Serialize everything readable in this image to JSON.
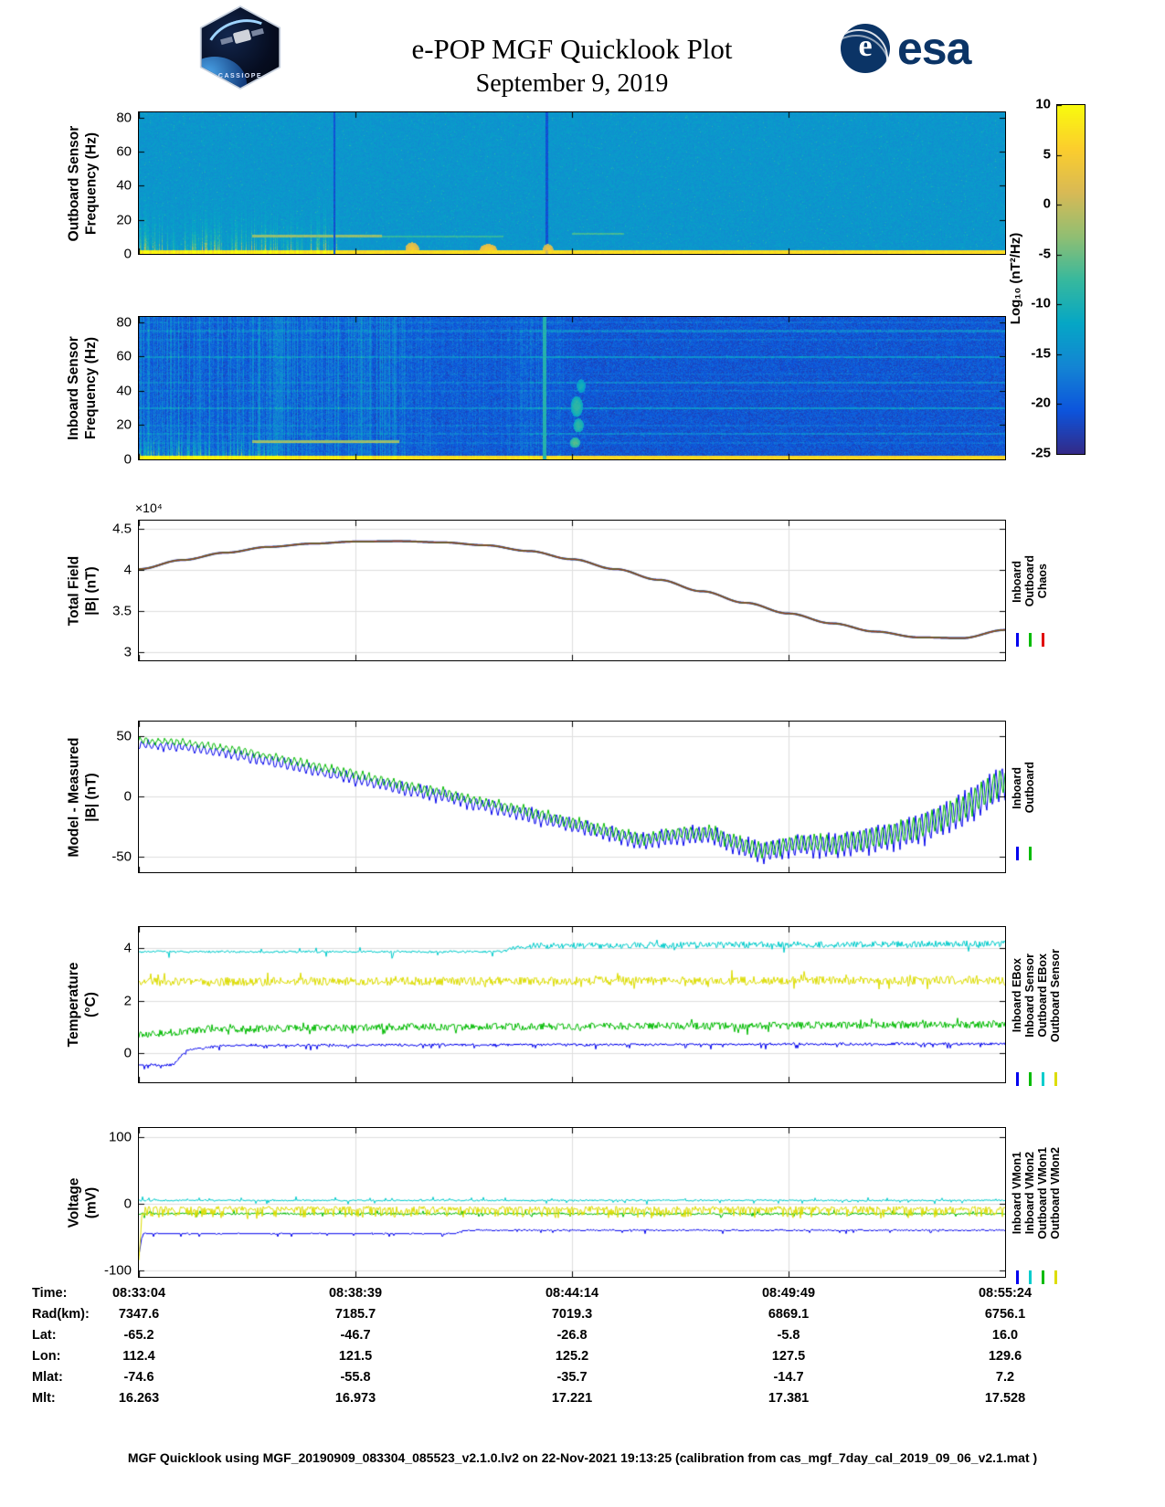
{
  "header": {
    "title_line1": "e-POP MGF Quicklook Plot",
    "title_line2": "September 9, 2019",
    "cassiope_logo_text": "CASSIOPE",
    "esa_logo_text": "esa",
    "esa_emblem_letter": "e"
  },
  "colorbar": {
    "label": "Log₁₀ (nT²/Hz)",
    "colormap": "parula",
    "range": [
      -25,
      10
    ],
    "ticks": [
      10,
      5,
      0,
      -5,
      -10,
      -15,
      -20,
      -25
    ]
  },
  "footer": {
    "text": "MGF Quicklook using MGF_20190909_083304_085523_v2.1.0.lv2 on 22-Nov-2021 19:13:25 (calibration from cas_mgf_7day_cal_2019_09_06_v2.1.mat )"
  },
  "ephemeris": {
    "rows": [
      {
        "label": "Time:",
        "values": [
          "08:33:04",
          "08:38:39",
          "08:44:14",
          "08:49:49",
          "08:55:24"
        ]
      },
      {
        "label": "Rad(km):",
        "values": [
          "7347.6",
          "7185.7",
          "7019.3",
          "6869.1",
          "6756.1"
        ]
      },
      {
        "label": "Lat:",
        "values": [
          "-65.2",
          "-46.7",
          "-26.8",
          "-5.8",
          "16.0"
        ]
      },
      {
        "label": "Lon:",
        "values": [
          "112.4",
          "121.5",
          "125.2",
          "127.5",
          "129.6"
        ]
      },
      {
        "label": "Mlat:",
        "values": [
          "-74.6",
          "-55.8",
          "-35.7",
          "-14.7",
          "7.2"
        ]
      },
      {
        "label": "Mlt:",
        "values": [
          "16.263",
          "16.973",
          "17.221",
          "17.381",
          "17.528"
        ]
      }
    ]
  },
  "chart_data": [
    {
      "id": "outboard-spectrogram",
      "type": "heatmap",
      "ylabel_lines": [
        "Outboard Sensor",
        "Frequency (Hz)"
      ],
      "ylim": [
        0,
        83
      ],
      "yticks": [
        0,
        20,
        40,
        60,
        80
      ],
      "value_range": [
        -25,
        10
      ],
      "value_units": "Log10 (nT²/Hz)",
      "background_level": -14,
      "background_noise": 1.3,
      "features": [
        {
          "type": "bottom_band",
          "f_max": 2.6,
          "level": 7
        },
        {
          "type": "burst_region",
          "t_max": 0.23,
          "f_scale": 9,
          "max_level": 24
        },
        {
          "type": "hline",
          "f": 10.5,
          "t0": 0.13,
          "t1": 0.28,
          "df": 0.8,
          "level": -3
        },
        {
          "type": "hline",
          "f": 10.5,
          "t0": 0.28,
          "t1": 0.42,
          "df": 0.5,
          "level": -8
        },
        {
          "type": "hline",
          "f": 12,
          "t0": 0.5,
          "t1": 0.56,
          "df": 0.6,
          "level": -7
        },
        {
          "type": "vline",
          "t": 0.2255,
          "w": 0.0012,
          "level": -21
        },
        {
          "type": "vline",
          "t": 0.4705,
          "w": 0.0012,
          "level": -21
        },
        {
          "type": "blob",
          "t": 0.315,
          "f": 3,
          "dt": 0.008,
          "df": 4,
          "level": 4
        },
        {
          "type": "blob",
          "t": 0.403,
          "f": 2.5,
          "dt": 0.01,
          "df": 3.5,
          "level": 5
        },
        {
          "type": "blob",
          "t": 0.472,
          "f": 3,
          "dt": 0.006,
          "df": 3,
          "level": 3
        }
      ]
    },
    {
      "id": "inboard-spectrogram",
      "type": "heatmap",
      "ylabel_lines": [
        "Inboard Sensor",
        "Frequency (Hz)"
      ],
      "ylim": [
        0,
        83
      ],
      "yticks": [
        0,
        20,
        40,
        60,
        80
      ],
      "value_range": [
        -25,
        10
      ],
      "value_units": "Log10 (nT²/Hz)",
      "background_level": -20.5,
      "background_noise": 2.2,
      "features": [
        {
          "type": "bottom_band",
          "f_max": 2.6,
          "level": 6.5
        },
        {
          "type": "stripe_region",
          "t_max": 0.31,
          "level_add": 7
        },
        {
          "type": "stripe_region",
          "t_min": 0.31,
          "t_max": 0.5,
          "level_add": 3
        },
        {
          "type": "burst_region",
          "t_max": 0.16,
          "f_scale": 7,
          "max_level": 28
        },
        {
          "type": "hline",
          "f": 10.5,
          "t0": 0.13,
          "t1": 0.3,
          "df": 0.8,
          "level": -3
        },
        {
          "type": "harmonics",
          "spacing": 10,
          "width": 0.5,
          "level_add": 2.5
        },
        {
          "type": "harmonics",
          "spacing": 15,
          "width": 0.6,
          "level_add": 3.5,
          "right_boost": true
        },
        {
          "type": "vline",
          "t": 0.468,
          "w": 0.002,
          "level": -9
        },
        {
          "type": "blob",
          "t": 0.505,
          "f": 31,
          "dt": 0.007,
          "df": 6,
          "level": -8
        },
        {
          "type": "blob",
          "t": 0.507,
          "f": 20,
          "dt": 0.006,
          "df": 4,
          "level": -8
        },
        {
          "type": "blob",
          "t": 0.51,
          "f": 43,
          "dt": 0.005,
          "df": 4,
          "level": -10
        },
        {
          "type": "blob",
          "t": 0.503,
          "f": 10,
          "dt": 0.006,
          "df": 3,
          "level": -6
        }
      ]
    },
    {
      "id": "total-field",
      "type": "line",
      "ylabel_lines": [
        "Total Field",
        "|B| (nT)"
      ],
      "scale_label": "×10⁴",
      "ylim": [
        2.9,
        4.6
      ],
      "yticks": [
        3,
        3.5,
        4,
        4.5
      ],
      "grid": true,
      "y_units": "1e4 nT",
      "x": [
        0,
        0.05,
        0.1,
        0.15,
        0.2,
        0.25,
        0.3,
        0.35,
        0.4,
        0.45,
        0.5,
        0.55,
        0.6,
        0.65,
        0.7,
        0.75,
        0.8,
        0.85,
        0.9,
        0.95,
        1
      ],
      "legend": [
        {
          "label": "Inboard",
          "color": "#0000EE"
        },
        {
          "label": "Outboard",
          "color": "#00BB00"
        },
        {
          "label": "Chaos",
          "color": "#E00000"
        }
      ],
      "series": [
        {
          "name": "Inboard",
          "color": "#2222DD",
          "style": "smooth",
          "lw": 2.2,
          "y": [
            4.01,
            4.12,
            4.21,
            4.28,
            4.32,
            4.345,
            4.35,
            4.335,
            4.3,
            4.23,
            4.13,
            4.01,
            3.88,
            3.74,
            3.6,
            3.47,
            3.35,
            3.25,
            3.18,
            3.17,
            3.27
          ]
        },
        {
          "name": "Outboard",
          "color": "#22AA22",
          "style": "smooth",
          "lw": 1.7,
          "alpha": 0.9,
          "y": [
            4.01,
            4.12,
            4.21,
            4.28,
            4.32,
            4.345,
            4.35,
            4.335,
            4.3,
            4.23,
            4.13,
            4.01,
            3.88,
            3.74,
            3.6,
            3.47,
            3.35,
            3.25,
            3.18,
            3.17,
            3.27
          ]
        },
        {
          "name": "Chaos",
          "color": "#A03818",
          "style": "smooth",
          "lw": 1.3,
          "alpha": 0.95,
          "y": [
            4.01,
            4.12,
            4.21,
            4.28,
            4.32,
            4.345,
            4.35,
            4.335,
            4.3,
            4.23,
            4.13,
            4.01,
            3.88,
            3.74,
            3.6,
            3.47,
            3.35,
            3.25,
            3.18,
            3.17,
            3.27
          ]
        }
      ]
    },
    {
      "id": "model-measured",
      "type": "line",
      "ylabel_lines": [
        "Model - Measured",
        "|B| (nT)"
      ],
      "ylim": [
        -63,
        62
      ],
      "yticks": [
        -50,
        0,
        50
      ],
      "grid": true,
      "x": [
        0,
        0.05,
        0.1,
        0.15,
        0.2,
        0.25,
        0.3,
        0.35,
        0.4,
        0.45,
        0.5,
        0.55,
        0.58,
        0.62,
        0.66,
        0.68,
        0.72,
        0.76,
        0.8,
        0.85,
        0.9,
        0.95,
        1
      ],
      "legend": [
        {
          "label": "Inboard",
          "color": "#0000EE"
        },
        {
          "label": "Outboard",
          "color": "#00BB00"
        }
      ],
      "series": [
        {
          "name": "Inboard",
          "color": "#0000EE",
          "style": "osc",
          "lw": 1,
          "y": [
            43,
            41,
            36,
            29,
            22,
            14,
            7,
            0,
            -8,
            -16,
            -24,
            -32,
            -38,
            -33,
            -32,
            -38,
            -47,
            -40,
            -42,
            -36,
            -28,
            -12,
            12
          ],
          "amp_x": [
            0,
            0.2,
            0.4,
            0.6,
            0.7,
            0.8,
            0.9,
            1
          ],
          "amp": [
            3.5,
            4.5,
            6,
            7,
            8.5,
            10.5,
            14,
            17
          ],
          "freq": 140,
          "jitter": 1.6
        },
        {
          "name": "Outboard",
          "color": "#00BB00",
          "style": "osc",
          "lw": 1,
          "y": [
            46,
            45,
            40,
            33,
            26,
            18,
            10,
            3,
            -5,
            -13,
            -22,
            -30,
            -36,
            -31,
            -30,
            -36,
            -45,
            -38,
            -40,
            -34,
            -26,
            -10,
            14
          ],
          "amp_x": [
            0,
            0.2,
            0.4,
            0.6,
            0.7,
            0.8,
            0.9,
            1
          ],
          "amp": [
            2.5,
            3.5,
            4.5,
            5.5,
            6.5,
            8,
            11,
            13
          ],
          "freq": 140,
          "jitter": 1.3,
          "phase": 0.33
        }
      ]
    },
    {
      "id": "temperature",
      "type": "line",
      "ylabel_lines": [
        "Temperature",
        "(°C)"
      ],
      "ylim": [
        -1.1,
        4.8
      ],
      "yticks": [
        0,
        2,
        4
      ],
      "grid": true,
      "legend": [
        {
          "label": "Inboard EBox",
          "color": "#0000EE"
        },
        {
          "label": "Inboard Sensor",
          "color": "#00BB00"
        },
        {
          "label": "Outboard EBox",
          "color": "#00CCCC"
        },
        {
          "label": "Outboard Sensor",
          "color": "#DDDD00"
        }
      ],
      "series": [
        {
          "name": "Inboard EBox",
          "color": "#0000EE",
          "style": "step",
          "lw": 1,
          "x": [
            0,
            0.04,
            0.055,
            0.1,
            0.45,
            1
          ],
          "y": [
            -0.45,
            -0.45,
            0.15,
            0.3,
            0.33,
            0.36
          ],
          "noise_amp": 0.04,
          "quant": 0.04,
          "dip_p": 0.05,
          "dip_mag": 0.17
        },
        {
          "name": "Inboard Sensor",
          "color": "#00BB00",
          "style": "noisy",
          "lw": 1,
          "x": [
            0,
            0.08,
            0.3,
            0.7,
            1
          ],
          "y": [
            0.68,
            0.92,
            1,
            1.05,
            1.1
          ],
          "noise_amp": 0.14,
          "spikes": {
            "p": 0.05,
            "mag": 0.22
          }
        },
        {
          "name": "Outboard Sensor",
          "color": "#DDDD00",
          "style": "noisy",
          "lw": 1,
          "x": [
            0,
            1
          ],
          "y": [
            2.72,
            2.78
          ],
          "noise_amp": 0.16,
          "spikes": {
            "p": 0.06,
            "mag": 0.28
          }
        },
        {
          "name": "Outboard EBox",
          "color": "#00CCCC",
          "style": "noisy",
          "lw": 1,
          "x": [
            0,
            0.42,
            0.44,
            1
          ],
          "y": [
            3.86,
            3.86,
            4.08,
            4.17
          ],
          "noise": {
            "x": [
              0,
              0.42,
              0.44,
              1
            ],
            "a": [
              0.04,
              0.04,
              0.12,
              0.12
            ]
          },
          "spikes": {
            "p": 0.03,
            "mag": 0.22
          }
        }
      ]
    },
    {
      "id": "voltage",
      "type": "line",
      "ylabel_lines": [
        "Voltage",
        "(mV)"
      ],
      "ylim": [
        -110,
        114
      ],
      "yticks": [
        -100,
        0,
        100
      ],
      "grid": true,
      "legend": [
        {
          "label": "Inboard VMon1",
          "color": "#0000EE"
        },
        {
          "label": "Inboard VMon2",
          "color": "#00CCCC"
        },
        {
          "label": "Outboard VMon1",
          "color": "#00BB00"
        },
        {
          "label": "Outboard VMon2",
          "color": "#DDDD00"
        }
      ],
      "series": [
        {
          "name": "Inboard VMon1",
          "color": "#0000EE",
          "style": "step",
          "lw": 1,
          "x": [
            0,
            0.365,
            0.375,
            1
          ],
          "y": [
            -45,
            -45,
            -40,
            -40
          ],
          "noise_amp": 0.8,
          "quant": 1.5,
          "dip_p": 0.04,
          "dip_mag": 5,
          "start_dip": {
            "t": 0.004,
            "y": -78
          }
        },
        {
          "name": "Outboard VMon1",
          "color": "#00BB00",
          "style": "noisy",
          "lw": 1,
          "x": [
            0,
            1
          ],
          "y": [
            -15,
            -15
          ],
          "noise_amp": 1.6,
          "spikes": {
            "p": 0.04,
            "mag": 5
          }
        },
        {
          "name": "Outboard VMon2",
          "color": "#DDDD00",
          "style": "noisy",
          "lw": 1,
          "x": [
            0,
            1
          ],
          "y": [
            -7,
            -7
          ],
          "noise_amp": 3.2,
          "spikes": {
            "p": 0.3,
            "mag": 13,
            "sign": -1
          },
          "start_dip": {
            "t": 0.004,
            "y": -85
          }
        },
        {
          "name": "Inboard VMon2",
          "color": "#00CCCC",
          "style": "noisy",
          "lw": 1,
          "x": [
            0,
            1
          ],
          "y": [
            5,
            5
          ],
          "noise_amp": 1.2,
          "spikes": {
            "p": 0.05,
            "mag": 5
          }
        }
      ]
    }
  ]
}
